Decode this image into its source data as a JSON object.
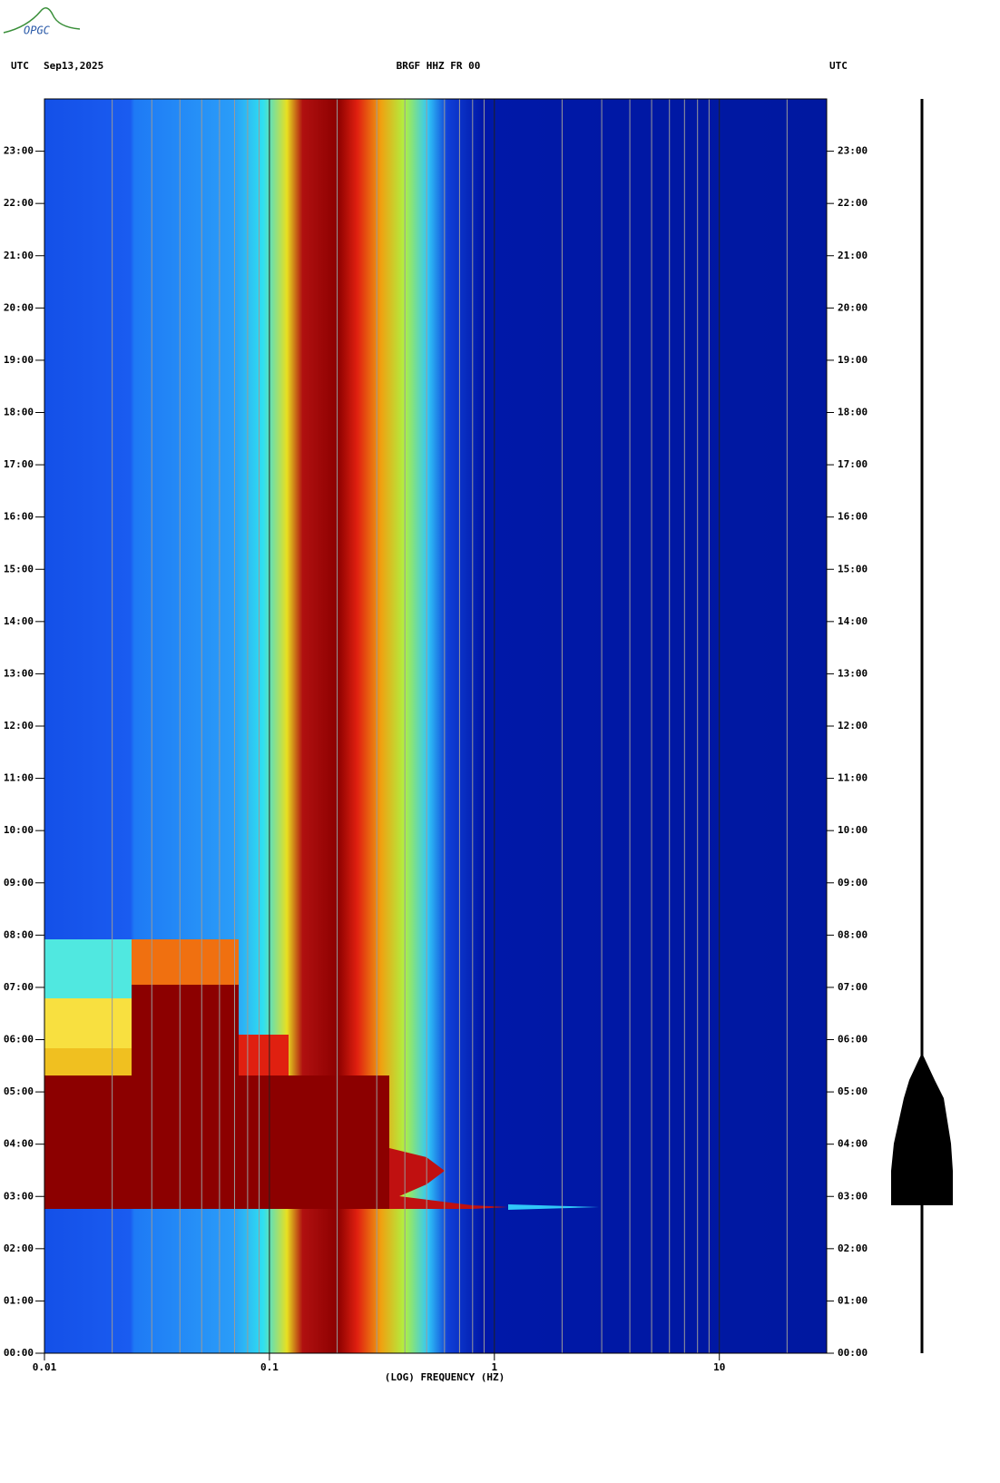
{
  "logo": "OPGC",
  "chart_data": {
    "type": "spectrogram",
    "title": "BRGF HHZ FR 00",
    "date": "Sep13,2025",
    "y_label_left": "UTC",
    "y_label_right": "UTC",
    "x_label": "(LOG) FREQUENCY (HZ)",
    "xscale": "log",
    "xlim": [
      0.01,
      30
    ],
    "xticks": [
      0.01,
      0.1,
      1,
      10
    ],
    "xminorticks": [
      0.02,
      0.03,
      0.04,
      0.05,
      0.06,
      0.07,
      0.08,
      0.09,
      0.2,
      0.3,
      0.4,
      0.5,
      0.6,
      0.7,
      0.8,
      0.9,
      2,
      3,
      4,
      5,
      6,
      7,
      8,
      9,
      20
    ],
    "grid": true,
    "ylim": [
      0,
      24
    ],
    "yticks": [
      {
        "value": 0,
        "label": "00:00"
      },
      {
        "value": 1,
        "label": "01:00"
      },
      {
        "value": 2,
        "label": "02:00"
      },
      {
        "value": 3,
        "label": "03:00"
      },
      {
        "value": 4,
        "label": "04:00"
      },
      {
        "value": 5,
        "label": "05:00"
      },
      {
        "value": 6,
        "label": "06:00"
      },
      {
        "value": 7,
        "label": "07:00"
      },
      {
        "value": 8,
        "label": "08:00"
      },
      {
        "value": 9,
        "label": "09:00"
      },
      {
        "value": 10,
        "label": "10:00"
      },
      {
        "value": 11,
        "label": "11:00"
      },
      {
        "value": 12,
        "label": "12:00"
      },
      {
        "value": 13,
        "label": "13:00"
      },
      {
        "value": 14,
        "label": "14:00"
      },
      {
        "value": 15,
        "label": "15:00"
      },
      {
        "value": 16,
        "label": "16:00"
      },
      {
        "value": 17,
        "label": "17:00"
      },
      {
        "value": 18,
        "label": "18:00"
      },
      {
        "value": 19,
        "label": "19:00"
      },
      {
        "value": 20,
        "label": "20:00"
      },
      {
        "value": 21,
        "label": "21:00"
      },
      {
        "value": 22,
        "label": "22:00"
      },
      {
        "value": 23,
        "label": "23:00"
      }
    ]
  }
}
